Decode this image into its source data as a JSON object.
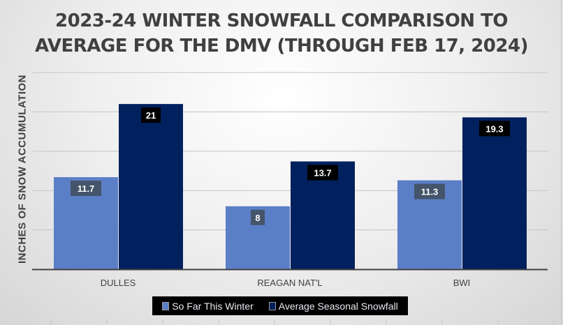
{
  "chart_data": {
    "type": "bar",
    "title": "2023-24 WINTER SNOWFALL COMPARISON TO AVERAGE FOR THE DMV (THROUGH FEB 17, 2024)",
    "title_lines": [
      "2023-24 WINTER SNOWFALL COMPARISON TO",
      "AVERAGE FOR THE DMV (THROUGH FEB 17, 2024)"
    ],
    "xlabel": "",
    "ylabel": "INCHES OF SNOW ACCUMULATION",
    "categories": [
      "DULLES",
      "REAGAN NAT'L",
      "BWI"
    ],
    "series": [
      {
        "name": "So Far This Winter",
        "values": [
          11.7,
          8,
          11.3
        ],
        "labels": [
          "11.7",
          "8",
          "11.3"
        ],
        "color": "#5b7fc7"
      },
      {
        "name": "Average Seasonal Snowfall",
        "values": [
          21,
          13.7,
          19.3
        ],
        "labels": [
          "21",
          "13.7",
          "19.3"
        ],
        "color": "#00205e"
      }
    ],
    "ylim": [
      0,
      25
    ],
    "gridlines": [
      5,
      10,
      15,
      20,
      25
    ],
    "grid": true,
    "y_tick_labels_shown": false,
    "legend_position": "bottom",
    "label_bg_colors": {
      "So Far This Winter": "#44546a",
      "Average Seasonal Snowfall": "#000000"
    }
  }
}
